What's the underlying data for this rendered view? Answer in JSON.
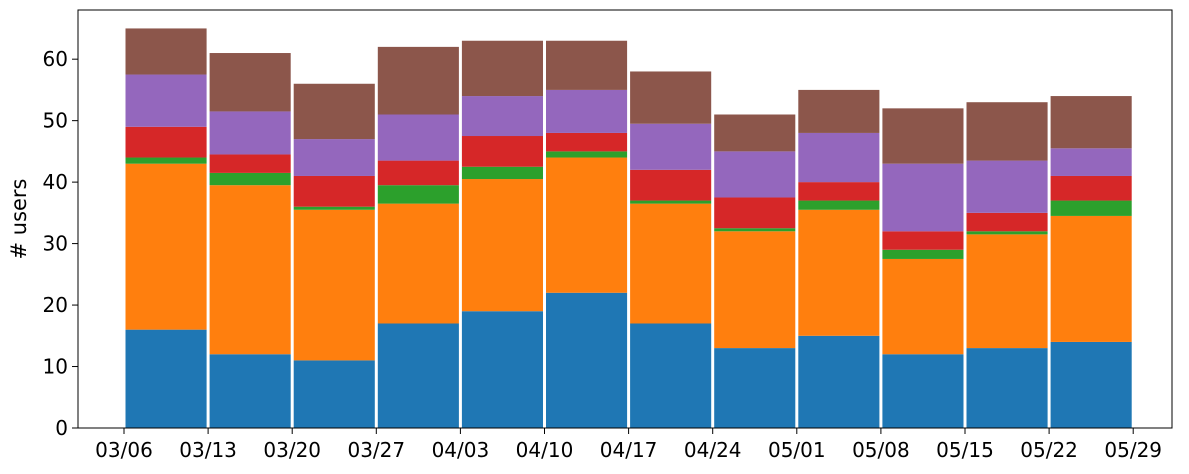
{
  "chart_data": {
    "type": "bar",
    "stacked": true,
    "ylabel": "# users",
    "xlabel": "",
    "title": "",
    "ylim": [
      0,
      68
    ],
    "yticks": [
      0,
      10,
      20,
      30,
      40,
      50,
      60
    ],
    "xtick_labels": [
      "03/06",
      "03/13",
      "03/20",
      "03/27",
      "04/03",
      "04/10",
      "04/17",
      "04/24",
      "05/01",
      "05/08",
      "05/15",
      "05/22",
      "05/29"
    ],
    "grid": false,
    "legend": "none",
    "series_colors": [
      "#1f77b4",
      "#ff7f0e",
      "#2ca02c",
      "#d62728",
      "#9467bd",
      "#8c564b"
    ],
    "series": [
      {
        "values": [
          16,
          12,
          11,
          17,
          19,
          22,
          17,
          13,
          15,
          12,
          13,
          14
        ]
      },
      {
        "values": [
          27,
          27.5,
          24.5,
          19.5,
          21.5,
          22,
          19.5,
          19,
          20.5,
          15.5,
          18.5,
          20.5
        ]
      },
      {
        "values": [
          1,
          2,
          0.5,
          3,
          2,
          1,
          0.5,
          0.5,
          1.5,
          1.5,
          0.5,
          2.5
        ]
      },
      {
        "values": [
          5,
          3,
          5,
          4,
          5,
          3,
          5,
          5,
          3,
          3,
          3,
          4
        ]
      },
      {
        "values": [
          8.5,
          7,
          6,
          7.5,
          6.5,
          7,
          7.5,
          7.5,
          8,
          11,
          8.5,
          4.5
        ]
      },
      {
        "values": [
          7.5,
          9.5,
          9,
          11,
          9,
          8,
          8.5,
          6,
          7,
          9,
          9.5,
          8.5
        ]
      }
    ]
  }
}
